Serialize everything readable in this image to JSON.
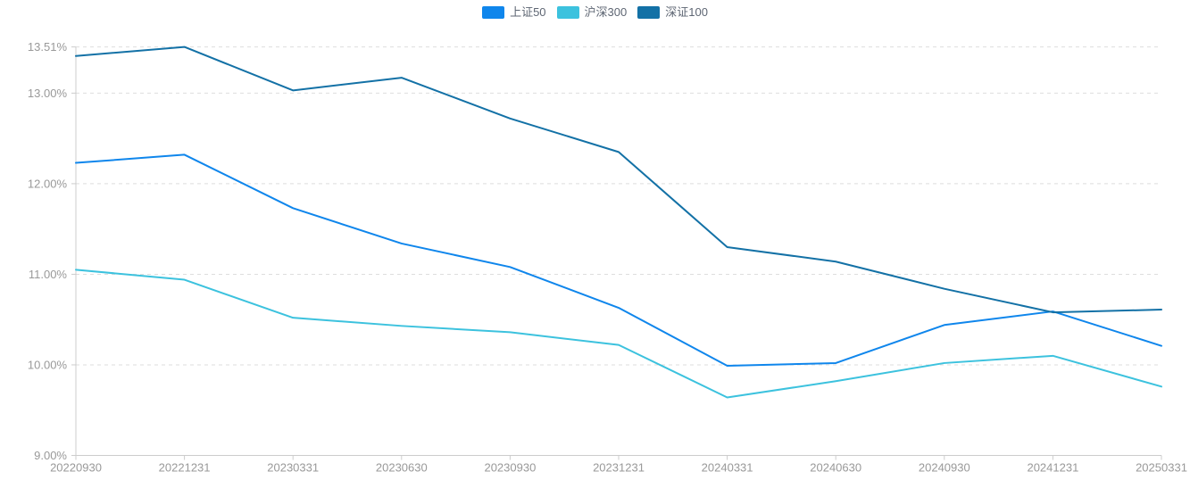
{
  "chart_data": {
    "type": "line",
    "title": "",
    "xlabel": "",
    "ylabel": "",
    "categories": [
      "20220930",
      "20221231",
      "20230331",
      "20230630",
      "20230930",
      "20231231",
      "20240331",
      "20240630",
      "20240930",
      "20241231",
      "20250331"
    ],
    "series": [
      {
        "name": "上证50",
        "color": "#0F86EC",
        "values": [
          12.23,
          12.32,
          11.73,
          11.34,
          11.08,
          10.63,
          9.99,
          10.02,
          10.44,
          10.59,
          10.21
        ]
      },
      {
        "name": "沪深300",
        "color": "#3CC2DE",
        "values": [
          11.05,
          10.94,
          10.52,
          10.43,
          10.36,
          10.22,
          9.64,
          9.82,
          10.02,
          10.1,
          9.76
        ]
      },
      {
        "name": "深证100",
        "color": "#1371A6",
        "values": [
          13.41,
          13.51,
          13.03,
          13.17,
          12.72,
          12.35,
          11.3,
          11.14,
          10.84,
          10.58,
          10.61
        ]
      }
    ],
    "ylim": [
      9,
      13.51
    ],
    "yticks": [
      9,
      10,
      11,
      12,
      13,
      13.51
    ],
    "ytick_labels": [
      "9.00%",
      "10.00%",
      "11.00%",
      "12.00%",
      "13.00%",
      "13.51%"
    ],
    "legend_position": "top-center",
    "grid": "horizontal-dashed",
    "colors": {
      "axis_line": "#cccccc",
      "grid_line": "#dddddd",
      "tick_label": "#999999",
      "legend_text": "#5E6673",
      "background": "#ffffff"
    }
  }
}
